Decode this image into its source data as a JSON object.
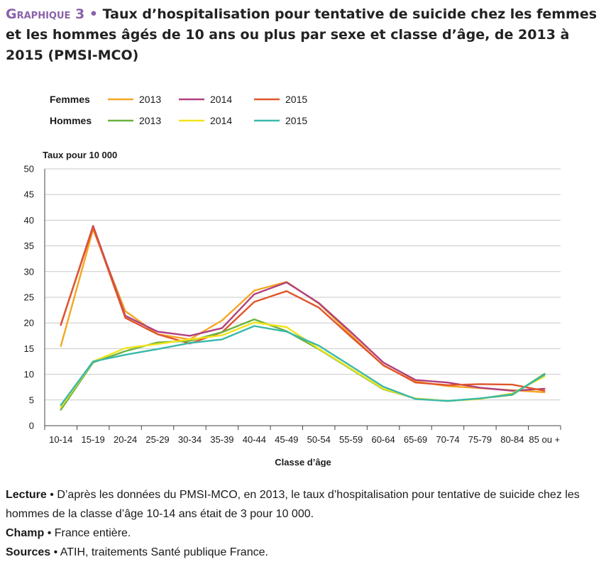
{
  "header": {
    "graph_label": "Graphique 3",
    "bullet": "•",
    "title": "Taux d’hospitalisation pour tentative de suicide chez les femmes et les hommes âgés de 10 ans ou plus par sexe et classe d’âge, de 2013 à 2015 (PMSI-MCO)"
  },
  "chart_data": {
    "type": "line",
    "ylabel": "Taux pour 10 000",
    "xlabel": "Classe d’âge",
    "ylim": [
      0,
      50
    ],
    "yticks": [
      0,
      5,
      10,
      15,
      20,
      25,
      30,
      35,
      40,
      45,
      50
    ],
    "grid": true,
    "categories": [
      "10-14",
      "15-19",
      "20-24",
      "25-29",
      "30-34",
      "35-39",
      "40-44",
      "45-49",
      "50-54",
      "55-59",
      "60-64",
      "65-69",
      "70-74",
      "75-79",
      "80-84",
      "85 ou +"
    ],
    "legend_groups": [
      {
        "label": "Femmes",
        "series": [
          0,
          1,
          2
        ]
      },
      {
        "label": "Hommes",
        "series": [
          3,
          4,
          5
        ]
      }
    ],
    "series": [
      {
        "name": "2013",
        "group": "Femmes",
        "color": "#f5a623",
        "values": [
          15.5,
          38.2,
          22.3,
          17.8,
          16.8,
          20.5,
          26.3,
          28.0,
          23.8,
          17.7,
          11.7,
          8.6,
          7.7,
          7.3,
          6.9,
          6.5
        ]
      },
      {
        "name": "2014",
        "group": "Femmes",
        "color": "#b0407f",
        "values": [
          19.6,
          38.9,
          21.4,
          18.3,
          17.5,
          19.0,
          25.6,
          27.9,
          23.9,
          18.2,
          12.3,
          8.9,
          8.4,
          7.4,
          6.8,
          7.2
        ]
      },
      {
        "name": "2015",
        "group": "Femmes",
        "color": "#e0562a",
        "values": [
          19.7,
          38.6,
          21.0,
          17.8,
          16.0,
          18.2,
          24.1,
          26.2,
          23.0,
          17.3,
          11.8,
          8.4,
          7.9,
          8.1,
          8.0,
          6.8
        ]
      },
      {
        "name": "2013",
        "group": "Hommes",
        "color": "#6ab23e",
        "values": [
          3.1,
          12.3,
          14.5,
          16.2,
          16.5,
          18.2,
          20.7,
          18.4,
          14.9,
          11.0,
          7.1,
          5.3,
          4.8,
          5.3,
          6.0,
          10.1
        ]
      },
      {
        "name": "2014",
        "group": "Hommes",
        "color": "#f2e31b",
        "values": [
          3.6,
          12.5,
          15.1,
          15.9,
          16.8,
          17.6,
          20.1,
          19.2,
          15.0,
          11.1,
          7.2,
          5.3,
          4.8,
          5.2,
          6.3,
          9.6
        ]
      },
      {
        "name": "2015",
        "group": "Hommes",
        "color": "#3ab8ab",
        "values": [
          4.0,
          12.5,
          13.8,
          14.9,
          16.1,
          16.8,
          19.4,
          18.3,
          15.6,
          11.6,
          7.6,
          5.2,
          4.8,
          5.3,
          6.1,
          9.9
        ]
      }
    ]
  },
  "notes": {
    "lecture_label": "Lecture",
    "lecture_text": "D’après les données du PMSI-MCO, en 2013, le taux d’hospitalisation pour tentative de suicide chez les hommes de la classe d’âge 10-14 ans était de 3 pour 10 000.",
    "champ_label": "Champ",
    "champ_text": "France entière.",
    "sources_label": "Sources",
    "sources_text": "ATIH, traitements Santé publique France.",
    "bullet": "•"
  }
}
